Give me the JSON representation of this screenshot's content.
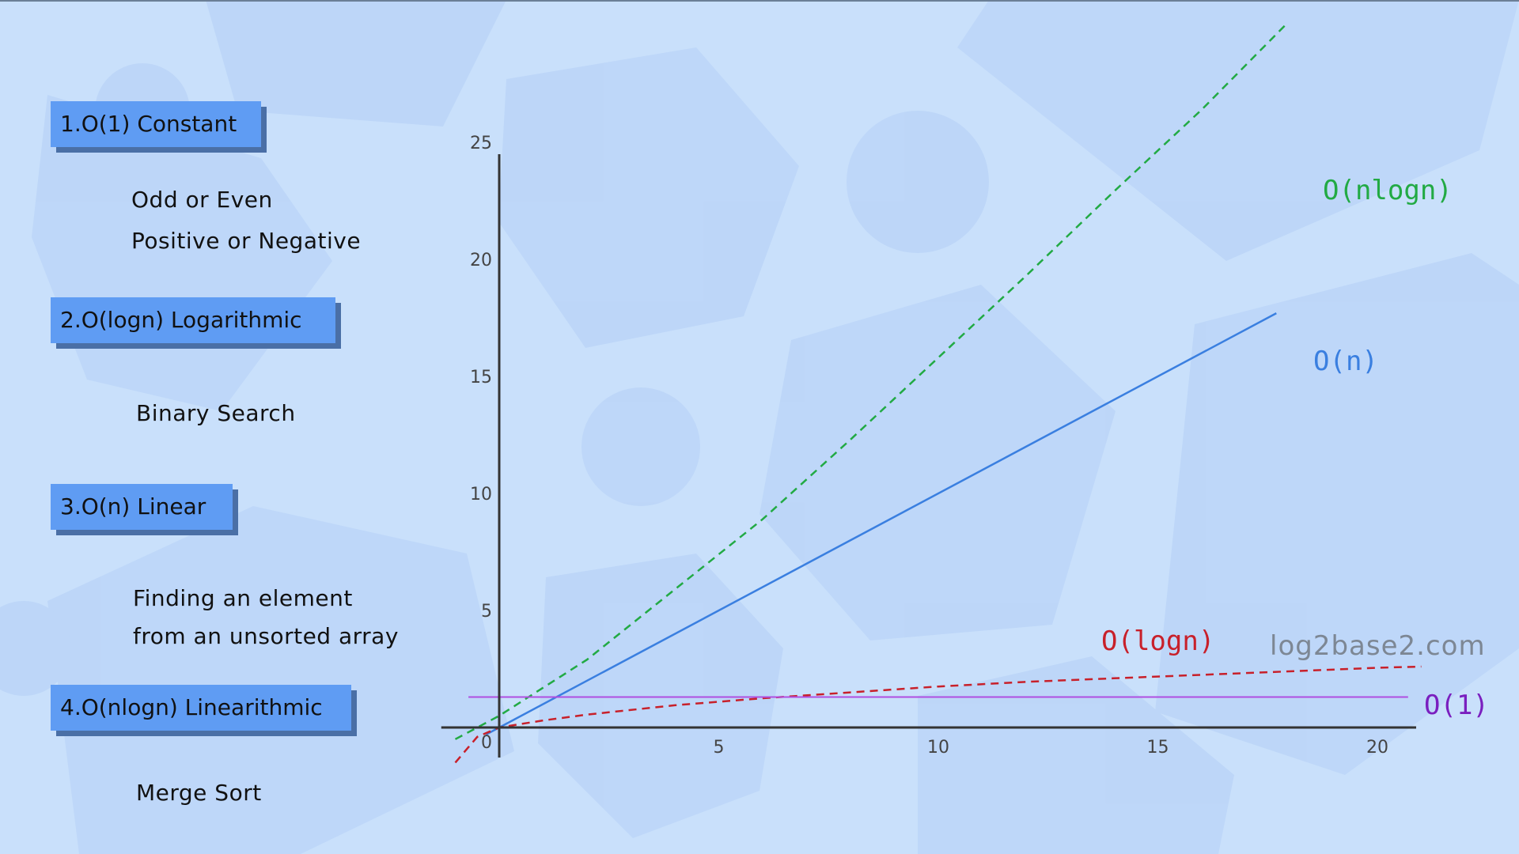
{
  "categories": [
    {
      "box_label": "1.O(1) Constant",
      "examples": [
        "Odd or Even",
        "Positive or Negative"
      ]
    },
    {
      "box_label": "2.O(logn) Logarithmic",
      "examples": [
        "Binary Search"
      ]
    },
    {
      "box_label": "3.O(n) Linear",
      "examples": [
        "Finding an element",
        "from an unsorted array"
      ]
    },
    {
      "box_label": "4.O(nlogn) Linearithmic",
      "examples": [
        "Merge Sort"
      ]
    }
  ],
  "watermark": "log2base2.com",
  "colors": {
    "background": "#c9e0fb",
    "box": "#5f9cf3",
    "box_shadow": "#4a6fa6",
    "nlogn": "#22aa44",
    "n": "#3a7fe0",
    "logn": "#c8202a",
    "constant": "#b04ee0",
    "constant_label": "#7a1fbf"
  },
  "chart_data": {
    "type": "line",
    "xlim": [
      -1.5,
      21
    ],
    "ylim": [
      -1.5,
      25.5
    ],
    "xticks": [
      5,
      10,
      15,
      20
    ],
    "yticks": [
      5,
      10,
      15,
      20,
      25
    ],
    "origin_label": "0",
    "grid": false,
    "series": [
      {
        "name": "O(nlogn)",
        "style": "dashed",
        "x": [
          -1,
          0,
          2,
          4,
          6,
          8,
          10,
          12,
          14,
          16,
          17.9
        ],
        "y": [
          -0.5,
          0.5,
          2.9,
          5.9,
          8.9,
          12.3,
          15.8,
          19.3,
          22.9,
          26.4,
          30
        ]
      },
      {
        "name": "O(n)",
        "style": "solid",
        "x": [
          -0.3,
          17.7
        ],
        "y": [
          -0.3,
          17.7
        ]
      },
      {
        "name": "O(logn)",
        "style": "dashed",
        "x": [
          -1,
          -0.5,
          0,
          1,
          2,
          4,
          6,
          8,
          10,
          12,
          14,
          16,
          18,
          20,
          21
        ],
        "y": [
          -1.5,
          -0.4,
          0,
          0.3,
          0.55,
          0.95,
          1.25,
          1.5,
          1.75,
          1.95,
          2.1,
          2.25,
          2.4,
          2.55,
          2.6
        ]
      },
      {
        "name": "O(1)",
        "style": "solid",
        "x": [
          -0.7,
          20.7
        ],
        "y": [
          1.3,
          1.3
        ]
      }
    ]
  }
}
